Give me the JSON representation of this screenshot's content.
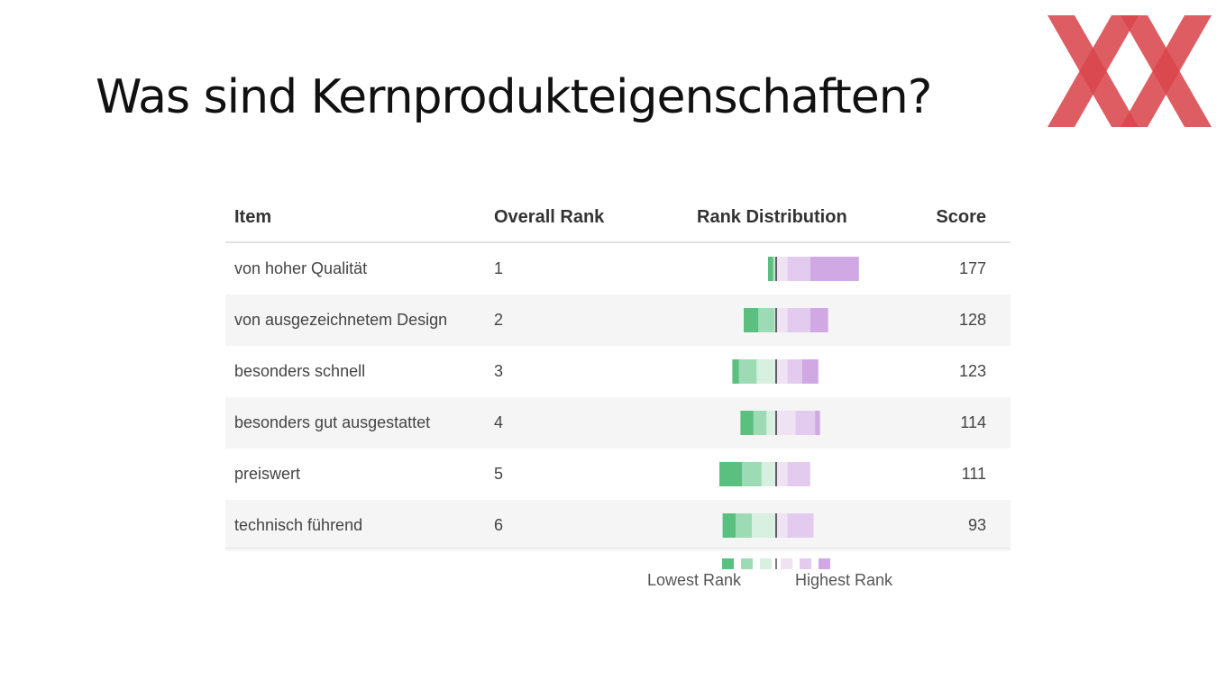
{
  "slide": {
    "title": "Was sind Kernprodukteigenschaften?"
  },
  "table": {
    "headers": {
      "item": "Item",
      "rank": "Overall Rank",
      "distribution": "Rank Distribution",
      "score": "Score"
    },
    "rows": [
      {
        "item": "von hoher Qualität",
        "rank": "1",
        "score": "177"
      },
      {
        "item": "von ausgezeichnetem Design",
        "rank": "2",
        "score": "128"
      },
      {
        "item": "besonders schnell",
        "rank": "3",
        "score": "123"
      },
      {
        "item": "besonders gut ausgestattet",
        "rank": "4",
        "score": "114"
      },
      {
        "item": "preiswert",
        "rank": "5",
        "score": "111"
      },
      {
        "item": "technisch führend",
        "rank": "6",
        "score": "93"
      }
    ]
  },
  "legend": {
    "low_label": "Lowest Rank",
    "high_label": "Highest Rank"
  },
  "colors": {
    "rank6": "#5bbf80",
    "rank5": "#9ddbb4",
    "rank4": "#d8f0e0",
    "rank3": "#efe3f3",
    "rank2": "#e2cbee",
    "rank1": "#cfa8e4",
    "logo": "#d9474c"
  },
  "chart_data": {
    "type": "bar",
    "title": "Rank Distribution",
    "categories": [
      "von hoher Qualität",
      "von ausgezeichnetem Design",
      "besonders schnell",
      "besonders gut ausgestattet",
      "preiswert",
      "technisch führend"
    ],
    "series": [
      {
        "name": "Lowest Rank",
        "values": [
          3,
          9,
          4,
          8,
          14,
          8
        ]
      },
      {
        "values": [
          1,
          10,
          11,
          8,
          12,
          10
        ]
      },
      {
        "values": [
          1,
          1,
          12,
          6,
          9,
          15
        ]
      },
      {
        "values": [
          7,
          7,
          7,
          12,
          7,
          7
        ]
      },
      {
        "values": [
          14,
          14,
          9,
          12,
          14,
          16
        ]
      },
      {
        "name": "Highest Rank",
        "values": [
          30,
          11,
          10,
          3,
          0,
          0
        ]
      }
    ],
    "scores": [
      177,
      128,
      123,
      114,
      111,
      93
    ],
    "overall_rank": [
      1,
      2,
      3,
      4,
      5,
      6
    ]
  }
}
